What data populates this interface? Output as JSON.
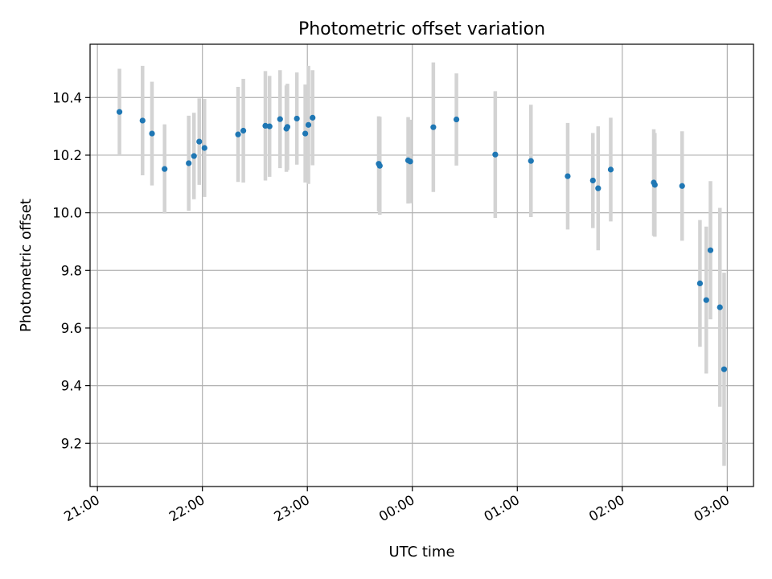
{
  "chart_data": {
    "type": "scatter",
    "title": "Photometric offset variation",
    "xlabel": "UTC time",
    "ylabel": "Photometric offset",
    "x_unit": "hours relative to 00:00 UTC",
    "xlim": [
      -3.07,
      3.25
    ],
    "ylim": [
      9.05,
      10.585
    ],
    "x_ticks": [
      {
        "value": -3,
        "label": "21:00"
      },
      {
        "value": -2,
        "label": "22:00"
      },
      {
        "value": -1,
        "label": "23:00"
      },
      {
        "value": 0,
        "label": "00:00"
      },
      {
        "value": 1,
        "label": "01:00"
      },
      {
        "value": 2,
        "label": "02:00"
      },
      {
        "value": 3,
        "label": "03:00"
      }
    ],
    "y_ticks": [
      9.2,
      9.4,
      9.6,
      9.8,
      10.0,
      10.2,
      10.4
    ],
    "grid": true,
    "colors": {
      "point": "#1f77b4",
      "errorbar": "#d3d3d3",
      "grid": "#b0b0b0"
    },
    "series": [
      {
        "points": [
          {
            "x": -2.79,
            "y": 10.35,
            "err": 0.15
          },
          {
            "x": -2.57,
            "y": 10.32,
            "err": 0.19
          },
          {
            "x": -2.48,
            "y": 10.275,
            "err": 0.18
          },
          {
            "x": -2.36,
            "y": 10.152,
            "err": 0.155
          },
          {
            "x": -2.13,
            "y": 10.172,
            "err": 0.165
          },
          {
            "x": -2.08,
            "y": 10.197,
            "err": 0.15
          },
          {
            "x": -2.03,
            "y": 10.247,
            "err": 0.15
          },
          {
            "x": -1.98,
            "y": 10.225,
            "err": 0.17
          },
          {
            "x": -1.66,
            "y": 10.272,
            "err": 0.165
          },
          {
            "x": -1.61,
            "y": 10.285,
            "err": 0.18
          },
          {
            "x": -1.4,
            "y": 10.302,
            "err": 0.19
          },
          {
            "x": -1.36,
            "y": 10.3,
            "err": 0.175
          },
          {
            "x": -1.26,
            "y": 10.325,
            "err": 0.17
          },
          {
            "x": -1.2,
            "y": 10.292,
            "err": 0.15
          },
          {
            "x": -1.19,
            "y": 10.298,
            "err": 0.15
          },
          {
            "x": -1.1,
            "y": 10.327,
            "err": 0.16
          },
          {
            "x": -1.02,
            "y": 10.275,
            "err": 0.17
          },
          {
            "x": -0.99,
            "y": 10.305,
            "err": 0.205
          },
          {
            "x": -0.95,
            "y": 10.33,
            "err": 0.165
          },
          {
            "x": -0.32,
            "y": 10.17,
            "err": 0.165
          },
          {
            "x": -0.31,
            "y": 10.163,
            "err": 0.17
          },
          {
            "x": -0.04,
            "y": 10.182,
            "err": 0.15
          },
          {
            "x": -0.02,
            "y": 10.178,
            "err": 0.145
          },
          {
            "x": 0.2,
            "y": 10.297,
            "err": 0.225
          },
          {
            "x": 0.42,
            "y": 10.324,
            "err": 0.16
          },
          {
            "x": 0.79,
            "y": 10.202,
            "err": 0.22
          },
          {
            "x": 1.13,
            "y": 10.18,
            "err": 0.195
          },
          {
            "x": 1.48,
            "y": 10.127,
            "err": 0.185
          },
          {
            "x": 1.72,
            "y": 10.112,
            "err": 0.165
          },
          {
            "x": 1.77,
            "y": 10.085,
            "err": 0.215
          },
          {
            "x": 1.89,
            "y": 10.15,
            "err": 0.18
          },
          {
            "x": 2.3,
            "y": 10.105,
            "err": 0.185
          },
          {
            "x": 2.31,
            "y": 10.097,
            "err": 0.18
          },
          {
            "x": 2.57,
            "y": 10.093,
            "err": 0.19
          },
          {
            "x": 2.74,
            "y": 9.755,
            "err": 0.22
          },
          {
            "x": 2.8,
            "y": 9.697,
            "err": 0.255
          },
          {
            "x": 2.84,
            "y": 9.87,
            "err": 0.24
          },
          {
            "x": 2.93,
            "y": 9.672,
            "err": 0.345
          },
          {
            "x": 2.97,
            "y": 9.457,
            "err": 0.335
          }
        ]
      }
    ]
  }
}
